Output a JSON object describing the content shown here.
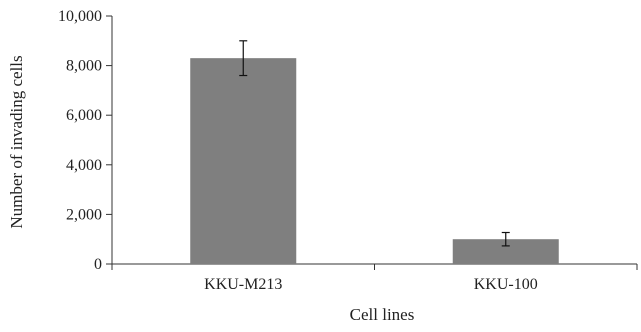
{
  "chart_data": {
    "type": "bar",
    "categories": [
      "KKU-M213",
      "KKU-100"
    ],
    "values": [
      8300,
      1000
    ],
    "error": [
      700,
      270
    ],
    "title": "",
    "xlabel": "Cell lines",
    "ylabel": "Number of invading cells",
    "ylim": [
      0,
      10000
    ],
    "yticks": [
      0,
      2000,
      4000,
      6000,
      8000,
      10000
    ],
    "ytick_labels": [
      "0",
      "2,000",
      "4,000",
      "6,000",
      "8,000",
      "10,000"
    ],
    "grid": false,
    "bar_color": "#7f7f7f",
    "axis_color": "#333333"
  }
}
